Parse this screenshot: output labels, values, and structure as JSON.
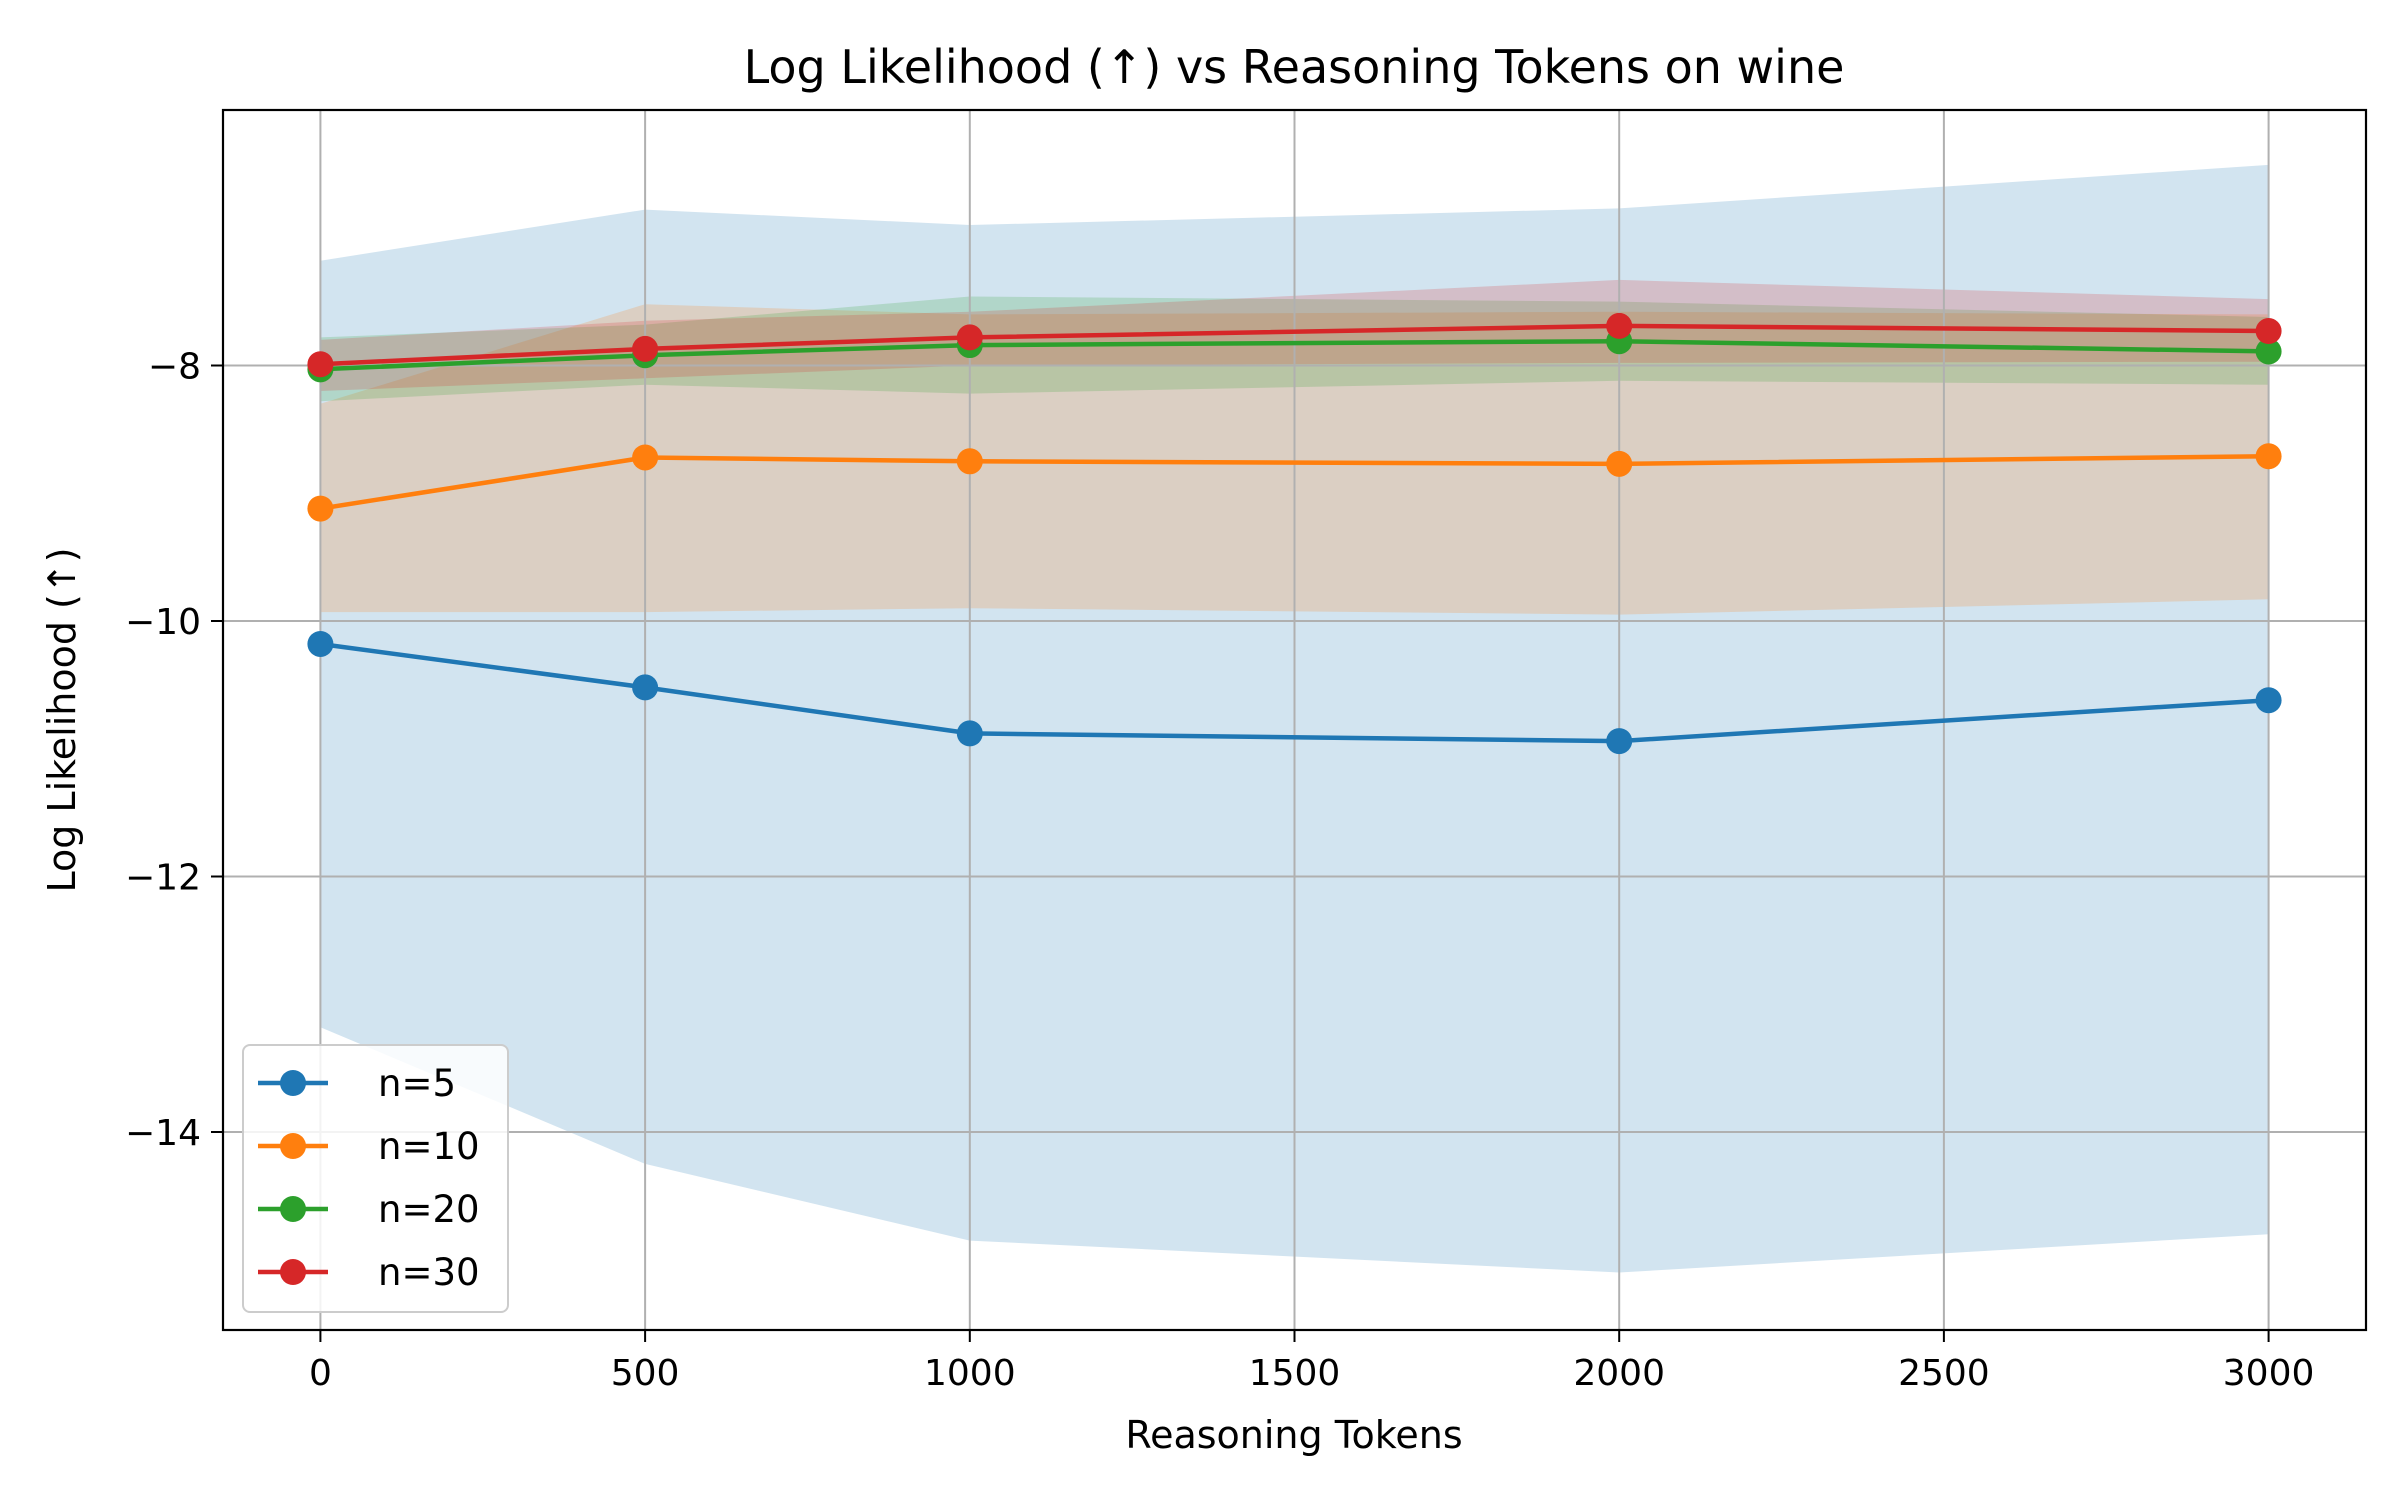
{
  "chart_data": {
    "type": "line",
    "title": "Log Likelihood (↑) vs Reasoning Tokens on wine",
    "xlabel": "Reasoning Tokens",
    "ylabel": "Log Likelihood (↑)",
    "xlim": [
      -150,
      3150
    ],
    "ylim": [
      -15.55,
      -6
    ],
    "xticks": [
      0,
      500,
      1000,
      1500,
      2000,
      2500,
      3000
    ],
    "yticks": [
      -14,
      -12,
      -10,
      -8
    ],
    "ytick_labels": [
      "−14",
      "−12",
      "−10",
      "−8"
    ],
    "grid": true,
    "legend_position": "lower-left",
    "x": [
      0,
      500,
      1000,
      2000,
      3000
    ],
    "series": [
      {
        "name": "n=5",
        "color": "#1f77b4",
        "values": [
          -10.18,
          -10.52,
          -10.88,
          -10.94,
          -10.62
        ],
        "lower": [
          -13.18,
          -14.25,
          -14.85,
          -15.1,
          -14.8
        ],
        "upper": [
          -7.18,
          -6.78,
          -6.9,
          -6.77,
          -6.43
        ]
      },
      {
        "name": "n=10",
        "color": "#ff7f0e",
        "values": [
          -9.12,
          -8.72,
          -8.75,
          -8.77,
          -8.71
        ],
        "lower": [
          -9.93,
          -9.93,
          -9.9,
          -9.95,
          -9.83
        ],
        "upper": [
          -8.3,
          -7.52,
          -7.6,
          -7.58,
          -7.6
        ]
      },
      {
        "name": "n=20",
        "color": "#2ca02c",
        "values": [
          -8.03,
          -7.92,
          -7.84,
          -7.81,
          -7.89
        ],
        "lower": [
          -8.28,
          -8.15,
          -8.22,
          -8.12,
          -8.15
        ],
        "upper": [
          -7.78,
          -7.68,
          -7.46,
          -7.5,
          -7.62
        ]
      },
      {
        "name": "n=30",
        "color": "#d62728",
        "values": [
          -7.99,
          -7.87,
          -7.78,
          -7.69,
          -7.73
        ],
        "lower": [
          -8.2,
          -8.1,
          -8.0,
          -7.98,
          -7.97
        ],
        "upper": [
          -7.8,
          -7.65,
          -7.58,
          -7.33,
          -7.48
        ]
      }
    ]
  }
}
